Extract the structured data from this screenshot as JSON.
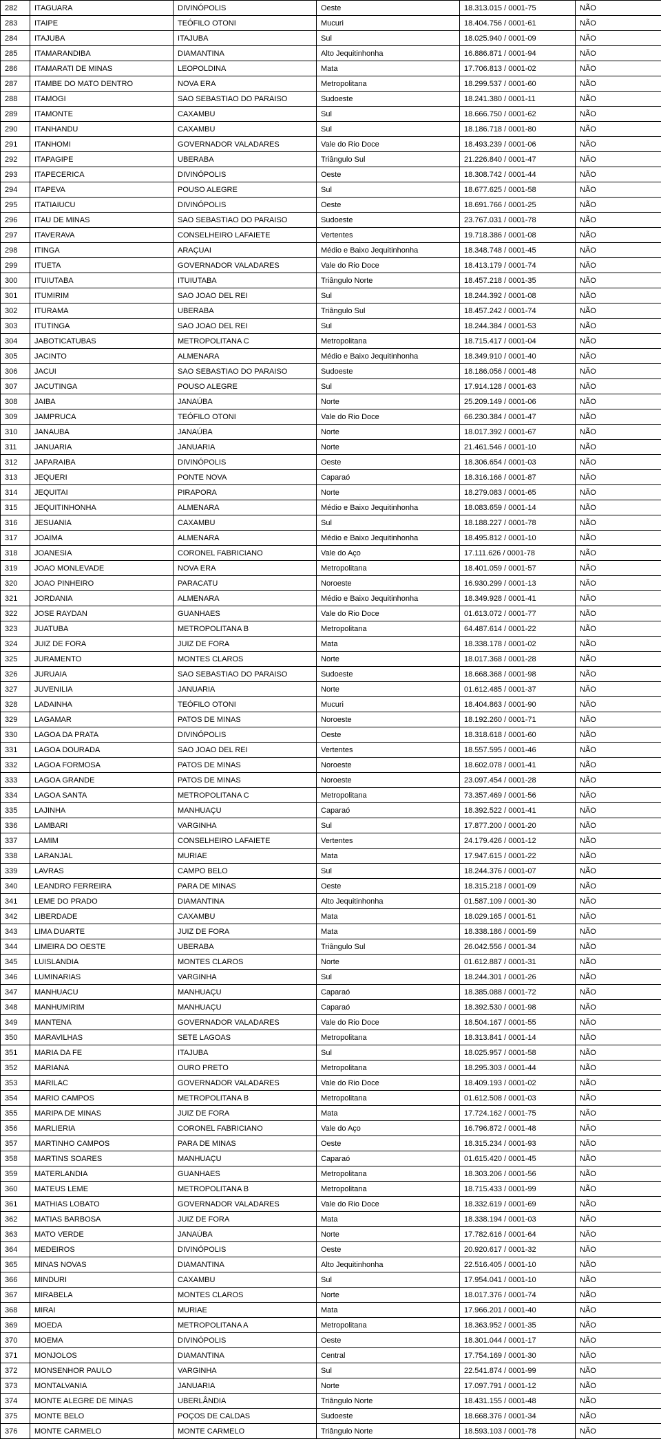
{
  "rows": [
    {
      "idx": "282",
      "mun": "ITAGUARA",
      "reg": "DIVINÓPOLIS",
      "sub": "Oeste",
      "cnpj": "18.313.015 / 0001-75",
      "flag": "NÃO"
    },
    {
      "idx": "283",
      "mun": "ITAIPE",
      "reg": "TEÓFILO OTONI",
      "sub": "Mucuri",
      "cnpj": "18.404.756 / 0001-61",
      "flag": "NÃO"
    },
    {
      "idx": "284",
      "mun": "ITAJUBA",
      "reg": "ITAJUBA",
      "sub": "Sul",
      "cnpj": "18.025.940 / 0001-09",
      "flag": "NÃO"
    },
    {
      "idx": "285",
      "mun": "ITAMARANDIBA",
      "reg": "DIAMANTINA",
      "sub": "Alto Jequitinhonha",
      "cnpj": "16.886.871 / 0001-94",
      "flag": "NÃO"
    },
    {
      "idx": "286",
      "mun": "ITAMARATI DE MINAS",
      "reg": "LEOPOLDINA",
      "sub": "Mata",
      "cnpj": "17.706.813 / 0001-02",
      "flag": "NÃO"
    },
    {
      "idx": "287",
      "mun": "ITAMBE DO MATO DENTRO",
      "reg": "NOVA ERA",
      "sub": "Metropolitana",
      "cnpj": "18.299.537 / 0001-60",
      "flag": "NÃO"
    },
    {
      "idx": "288",
      "mun": "ITAMOGI",
      "reg": "SAO SEBASTIAO DO PARAISO",
      "sub": "Sudoeste",
      "cnpj": "18.241.380 / 0001-11",
      "flag": "NÃO"
    },
    {
      "idx": "289",
      "mun": "ITAMONTE",
      "reg": "CAXAMBU",
      "sub": "Sul",
      "cnpj": "18.666.750 / 0001-62",
      "flag": "NÃO"
    },
    {
      "idx": "290",
      "mun": "ITANHANDU",
      "reg": "CAXAMBU",
      "sub": "Sul",
      "cnpj": "18.186.718 / 0001-80",
      "flag": "NÃO"
    },
    {
      "idx": "291",
      "mun": "ITANHOMI",
      "reg": "GOVERNADOR VALADARES",
      "sub": "Vale do Rio Doce",
      "cnpj": "18.493.239 / 0001-06",
      "flag": "NÃO"
    },
    {
      "idx": "292",
      "mun": "ITAPAGIPE",
      "reg": "UBERABA",
      "sub": "Triângulo Sul",
      "cnpj": "21.226.840 / 0001-47",
      "flag": "NÃO"
    },
    {
      "idx": "293",
      "mun": "ITAPECERICA",
      "reg": "DIVINÓPOLIS",
      "sub": "Oeste",
      "cnpj": "18.308.742 / 0001-44",
      "flag": "NÃO"
    },
    {
      "idx": "294",
      "mun": "ITAPEVA",
      "reg": "POUSO ALEGRE",
      "sub": "Sul",
      "cnpj": "18.677.625 / 0001-58",
      "flag": "NÃO"
    },
    {
      "idx": "295",
      "mun": "ITATIAIUCU",
      "reg": "DIVINÓPOLIS",
      "sub": "Oeste",
      "cnpj": "18.691.766 / 0001-25",
      "flag": "NÃO"
    },
    {
      "idx": "296",
      "mun": "ITAU DE MINAS",
      "reg": "SAO SEBASTIAO DO PARAISO",
      "sub": "Sudoeste",
      "cnpj": "23.767.031 / 0001-78",
      "flag": "NÃO"
    },
    {
      "idx": "297",
      "mun": "ITAVERAVA",
      "reg": "CONSELHEIRO LAFAIETE",
      "sub": "Vertentes",
      "cnpj": "19.718.386 / 0001-08",
      "flag": "NÃO"
    },
    {
      "idx": "298",
      "mun": "ITINGA",
      "reg": "ARAÇUAI",
      "sub": "Médio e Baixo Jequitinhonha",
      "cnpj": "18.348.748 / 0001-45",
      "flag": "NÃO"
    },
    {
      "idx": "299",
      "mun": "ITUETA",
      "reg": "GOVERNADOR VALADARES",
      "sub": "Vale do Rio Doce",
      "cnpj": "18.413.179 / 0001-74",
      "flag": "NÃO"
    },
    {
      "idx": "300",
      "mun": "ITUIUTABA",
      "reg": "ITUIUTABA",
      "sub": "Triângulo Norte",
      "cnpj": "18.457.218 / 0001-35",
      "flag": "NÃO"
    },
    {
      "idx": "301",
      "mun": "ITUMIRIM",
      "reg": "SAO JOAO DEL REI",
      "sub": "Sul",
      "cnpj": "18.244.392 / 0001-08",
      "flag": "NÃO"
    },
    {
      "idx": "302",
      "mun": "ITURAMA",
      "reg": "UBERABA",
      "sub": "Triângulo Sul",
      "cnpj": "18.457.242 / 0001-74",
      "flag": "NÃO"
    },
    {
      "idx": "303",
      "mun": "ITUTINGA",
      "reg": "SAO JOAO DEL REI",
      "sub": "Sul",
      "cnpj": "18.244.384 / 0001-53",
      "flag": "NÃO"
    },
    {
      "idx": "304",
      "mun": "JABOTICATUBAS",
      "reg": "METROPOLITANA C",
      "sub": "Metropolitana",
      "cnpj": "18.715.417 / 0001-04",
      "flag": "NÃO"
    },
    {
      "idx": "305",
      "mun": "JACINTO",
      "reg": "ALMENARA",
      "sub": "Médio e Baixo Jequitinhonha",
      "cnpj": "18.349.910 / 0001-40",
      "flag": "NÃO"
    },
    {
      "idx": "306",
      "mun": "JACUI",
      "reg": "SAO SEBASTIAO DO PARAISO",
      "sub": "Sudoeste",
      "cnpj": "18.186.056 / 0001-48",
      "flag": "NÃO"
    },
    {
      "idx": "307",
      "mun": "JACUTINGA",
      "reg": "POUSO ALEGRE",
      "sub": "Sul",
      "cnpj": "17.914.128 / 0001-63",
      "flag": "NÃO"
    },
    {
      "idx": "308",
      "mun": "JAIBA",
      "reg": "JANAÚBA",
      "sub": "Norte",
      "cnpj": "25.209.149 / 0001-06",
      "flag": "NÃO"
    },
    {
      "idx": "309",
      "mun": "JAMPRUCA",
      "reg": "TEÓFILO OTONI",
      "sub": "Vale do Rio Doce",
      "cnpj": "66.230.384 / 0001-47",
      "flag": "NÃO"
    },
    {
      "idx": "310",
      "mun": "JANAUBA",
      "reg": "JANAÚBA",
      "sub": "Norte",
      "cnpj": "18.017.392 / 0001-67",
      "flag": "NÃO"
    },
    {
      "idx": "311",
      "mun": "JANUARIA",
      "reg": "JANUARIA",
      "sub": "Norte",
      "cnpj": "21.461.546 / 0001-10",
      "flag": "NÃO"
    },
    {
      "idx": "312",
      "mun": "JAPARAIBA",
      "reg": "DIVINÓPOLIS",
      "sub": "Oeste",
      "cnpj": "18.306.654 / 0001-03",
      "flag": "NÃO"
    },
    {
      "idx": "313",
      "mun": "JEQUERI",
      "reg": "PONTE NOVA",
      "sub": "Caparaó",
      "cnpj": "18.316.166 / 0001-87",
      "flag": "NÃO"
    },
    {
      "idx": "314",
      "mun": "JEQUITAI",
      "reg": "PIRAPORA",
      "sub": "Norte",
      "cnpj": "18.279.083 / 0001-65",
      "flag": "NÃO"
    },
    {
      "idx": "315",
      "mun": "JEQUITINHONHA",
      "reg": "ALMENARA",
      "sub": "Médio e Baixo Jequitinhonha",
      "cnpj": "18.083.659 / 0001-14",
      "flag": "NÃO"
    },
    {
      "idx": "316",
      "mun": "JESUANIA",
      "reg": "CAXAMBU",
      "sub": "Sul",
      "cnpj": "18.188.227 / 0001-78",
      "flag": "NÃO"
    },
    {
      "idx": "317",
      "mun": "JOAIMA",
      "reg": "ALMENARA",
      "sub": "Médio e Baixo Jequitinhonha",
      "cnpj": "18.495.812 / 0001-10",
      "flag": "NÃO"
    },
    {
      "idx": "318",
      "mun": "JOANESIA",
      "reg": "CORONEL FABRICIANO",
      "sub": "Vale do Aço",
      "cnpj": "17.111.626 / 0001-78",
      "flag": "NÃO"
    },
    {
      "idx": "319",
      "mun": "JOAO MONLEVADE",
      "reg": "NOVA ERA",
      "sub": "Metropolitana",
      "cnpj": "18.401.059 / 0001-57",
      "flag": "NÃO"
    },
    {
      "idx": "320",
      "mun": "JOAO PINHEIRO",
      "reg": "PARACATU",
      "sub": "Noroeste",
      "cnpj": "16.930.299 / 0001-13",
      "flag": "NÃO"
    },
    {
      "idx": "321",
      "mun": "JORDANIA",
      "reg": "ALMENARA",
      "sub": "Médio e Baixo Jequitinhonha",
      "cnpj": "18.349.928 / 0001-41",
      "flag": "NÃO"
    },
    {
      "idx": "322",
      "mun": "JOSE RAYDAN",
      "reg": "GUANHAES",
      "sub": "Vale do Rio Doce",
      "cnpj": "01.613.072 / 0001-77",
      "flag": "NÃO"
    },
    {
      "idx": "323",
      "mun": "JUATUBA",
      "reg": "METROPOLITANA B",
      "sub": "Metropolitana",
      "cnpj": "64.487.614 / 0001-22",
      "flag": "NÃO"
    },
    {
      "idx": "324",
      "mun": "JUIZ DE FORA",
      "reg": "JUIZ DE FORA",
      "sub": "Mata",
      "cnpj": "18.338.178 / 0001-02",
      "flag": "NÃO"
    },
    {
      "idx": "325",
      "mun": "JURAMENTO",
      "reg": "MONTES CLAROS",
      "sub": "Norte",
      "cnpj": "18.017.368 / 0001-28",
      "flag": "NÃO"
    },
    {
      "idx": "326",
      "mun": "JURUAIA",
      "reg": "SAO SEBASTIAO DO PARAISO",
      "sub": "Sudoeste",
      "cnpj": "18.668.368 / 0001-98",
      "flag": "NÃO"
    },
    {
      "idx": "327",
      "mun": "JUVENILIA",
      "reg": "JANUARIA",
      "sub": "Norte",
      "cnpj": "01.612.485 / 0001-37",
      "flag": "NÃO"
    },
    {
      "idx": "328",
      "mun": "LADAINHA",
      "reg": "TEÓFILO OTONI",
      "sub": "Mucuri",
      "cnpj": "18.404.863 / 0001-90",
      "flag": "NÃO"
    },
    {
      "idx": "329",
      "mun": "LAGAMAR",
      "reg": "PATOS DE MINAS",
      "sub": "Noroeste",
      "cnpj": "18.192.260 / 0001-71",
      "flag": "NÃO"
    },
    {
      "idx": "330",
      "mun": "LAGOA DA PRATA",
      "reg": "DIVINÓPOLIS",
      "sub": "Oeste",
      "cnpj": "18.318.618 / 0001-60",
      "flag": "NÃO"
    },
    {
      "idx": "331",
      "mun": "LAGOA DOURADA",
      "reg": "SAO JOAO DEL REI",
      "sub": "Vertentes",
      "cnpj": "18.557.595 / 0001-46",
      "flag": "NÃO"
    },
    {
      "idx": "332",
      "mun": "LAGOA FORMOSA",
      "reg": "PATOS DE MINAS",
      "sub": "Noroeste",
      "cnpj": "18.602.078 / 0001-41",
      "flag": "NÃO"
    },
    {
      "idx": "333",
      "mun": "LAGOA GRANDE",
      "reg": "PATOS DE MINAS",
      "sub": "Noroeste",
      "cnpj": "23.097.454 / 0001-28",
      "flag": "NÃO"
    },
    {
      "idx": "334",
      "mun": "LAGOA SANTA",
      "reg": "METROPOLITANA C",
      "sub": "Metropolitana",
      "cnpj": "73.357.469 / 0001-56",
      "flag": "NÃO"
    },
    {
      "idx": "335",
      "mun": "LAJINHA",
      "reg": "MANHUAÇU",
      "sub": "Caparaó",
      "cnpj": "18.392.522 / 0001-41",
      "flag": "NÃO"
    },
    {
      "idx": "336",
      "mun": "LAMBARI",
      "reg": "VARGINHA",
      "sub": "Sul",
      "cnpj": "17.877.200 / 0001-20",
      "flag": "NÃO"
    },
    {
      "idx": "337",
      "mun": "LAMIM",
      "reg": "CONSELHEIRO LAFAIETE",
      "sub": "Vertentes",
      "cnpj": "24.179.426 / 0001-12",
      "flag": "NÃO"
    },
    {
      "idx": "338",
      "mun": "LARANJAL",
      "reg": "MURIAE",
      "sub": "Mata",
      "cnpj": "17.947.615 / 0001-22",
      "flag": "NÃO"
    },
    {
      "idx": "339",
      "mun": "LAVRAS",
      "reg": "CAMPO BELO",
      "sub": "Sul",
      "cnpj": "18.244.376 / 0001-07",
      "flag": "NÃO"
    },
    {
      "idx": "340",
      "mun": "LEANDRO FERREIRA",
      "reg": "PARA DE MINAS",
      "sub": "Oeste",
      "cnpj": "18.315.218 / 0001-09",
      "flag": "NÃO"
    },
    {
      "idx": "341",
      "mun": "LEME DO PRADO",
      "reg": "DIAMANTINA",
      "sub": "Alto Jequitinhonha",
      "cnpj": "01.587.109 / 0001-30",
      "flag": "NÃO"
    },
    {
      "idx": "342",
      "mun": "LIBERDADE",
      "reg": "CAXAMBU",
      "sub": "Mata",
      "cnpj": "18.029.165 / 0001-51",
      "flag": "NÃO"
    },
    {
      "idx": "343",
      "mun": "LIMA DUARTE",
      "reg": "JUIZ DE FORA",
      "sub": "Mata",
      "cnpj": "18.338.186 / 0001-59",
      "flag": "NÃO"
    },
    {
      "idx": "344",
      "mun": "LIMEIRA DO OESTE",
      "reg": "UBERABA",
      "sub": "Triângulo Sul",
      "cnpj": "26.042.556 / 0001-34",
      "flag": "NÃO"
    },
    {
      "idx": "345",
      "mun": "LUISLANDIA",
      "reg": "MONTES CLAROS",
      "sub": "Norte",
      "cnpj": "01.612.887 / 0001-31",
      "flag": "NÃO"
    },
    {
      "idx": "346",
      "mun": "LUMINARIAS",
      "reg": "VARGINHA",
      "sub": "Sul",
      "cnpj": "18.244.301 / 0001-26",
      "flag": "NÃO"
    },
    {
      "idx": "347",
      "mun": "MANHUACU",
      "reg": "MANHUAÇU",
      "sub": "Caparaó",
      "cnpj": "18.385.088 / 0001-72",
      "flag": "NÃO"
    },
    {
      "idx": "348",
      "mun": "MANHUMIRIM",
      "reg": "MANHUAÇU",
      "sub": "Caparaó",
      "cnpj": "18.392.530 / 0001-98",
      "flag": "NÃO"
    },
    {
      "idx": "349",
      "mun": "MANTENA",
      "reg": "GOVERNADOR VALADARES",
      "sub": "Vale do Rio Doce",
      "cnpj": "18.504.167 / 0001-55",
      "flag": "NÃO"
    },
    {
      "idx": "350",
      "mun": "MARAVILHAS",
      "reg": "SETE LAGOAS",
      "sub": "Metropolitana",
      "cnpj": "18.313.841 / 0001-14",
      "flag": "NÃO"
    },
    {
      "idx": "351",
      "mun": "MARIA DA FE",
      "reg": "ITAJUBA",
      "sub": "Sul",
      "cnpj": "18.025.957 / 0001-58",
      "flag": "NÃO"
    },
    {
      "idx": "352",
      "mun": "MARIANA",
      "reg": "OURO PRETO",
      "sub": "Metropolitana",
      "cnpj": "18.295.303 / 0001-44",
      "flag": "NÃO"
    },
    {
      "idx": "353",
      "mun": "MARILAC",
      "reg": "GOVERNADOR VALADARES",
      "sub": "Vale do Rio Doce",
      "cnpj": "18.409.193 / 0001-02",
      "flag": "NÃO"
    },
    {
      "idx": "354",
      "mun": "MARIO CAMPOS",
      "reg": "METROPOLITANA B",
      "sub": "Metropolitana",
      "cnpj": "01.612.508 / 0001-03",
      "flag": "NÃO"
    },
    {
      "idx": "355",
      "mun": "MARIPA DE MINAS",
      "reg": "JUIZ DE FORA",
      "sub": "Mata",
      "cnpj": "17.724.162 / 0001-75",
      "flag": "NÃO"
    },
    {
      "idx": "356",
      "mun": "MARLIERIA",
      "reg": "CORONEL FABRICIANO",
      "sub": "Vale do Aço",
      "cnpj": "16.796.872 / 0001-48",
      "flag": "NÃO"
    },
    {
      "idx": "357",
      "mun": "MARTINHO CAMPOS",
      "reg": "PARA DE MINAS",
      "sub": "Oeste",
      "cnpj": "18.315.234 / 0001-93",
      "flag": "NÃO"
    },
    {
      "idx": "358",
      "mun": "MARTINS SOARES",
      "reg": "MANHUAÇU",
      "sub": "Caparaó",
      "cnpj": "01.615.420 / 0001-45",
      "flag": "NÃO"
    },
    {
      "idx": "359",
      "mun": "MATERLANDIA",
      "reg": "GUANHAES",
      "sub": "Metropolitana",
      "cnpj": "18.303.206 / 0001-56",
      "flag": "NÃO"
    },
    {
      "idx": "360",
      "mun": "MATEUS LEME",
      "reg": "METROPOLITANA B",
      "sub": "Metropolitana",
      "cnpj": "18.715.433 / 0001-99",
      "flag": "NÃO"
    },
    {
      "idx": "361",
      "mun": "MATHIAS LOBATO",
      "reg": "GOVERNADOR VALADARES",
      "sub": "Vale do Rio Doce",
      "cnpj": "18.332.619 / 0001-69",
      "flag": "NÃO"
    },
    {
      "idx": "362",
      "mun": "MATIAS BARBOSA",
      "reg": "JUIZ DE FORA",
      "sub": "Mata",
      "cnpj": "18.338.194 / 0001-03",
      "flag": "NÃO"
    },
    {
      "idx": "363",
      "mun": "MATO VERDE",
      "reg": "JANAÚBA",
      "sub": "Norte",
      "cnpj": "17.782.616 / 0001-64",
      "flag": "NÃO"
    },
    {
      "idx": "364",
      "mun": "MEDEIROS",
      "reg": "DIVINÓPOLIS",
      "sub": "Oeste",
      "cnpj": "20.920.617 / 0001-32",
      "flag": "NÃO"
    },
    {
      "idx": "365",
      "mun": "MINAS NOVAS",
      "reg": "DIAMANTINA",
      "sub": "Alto Jequitinhonha",
      "cnpj": "22.516.405 / 0001-10",
      "flag": "NÃO"
    },
    {
      "idx": "366",
      "mun": "MINDURI",
      "reg": "CAXAMBU",
      "sub": "Sul",
      "cnpj": "17.954.041 / 0001-10",
      "flag": "NÃO"
    },
    {
      "idx": "367",
      "mun": "MIRABELA",
      "reg": "MONTES CLAROS",
      "sub": "Norte",
      "cnpj": "18.017.376 / 0001-74",
      "flag": "NÃO"
    },
    {
      "idx": "368",
      "mun": "MIRAI",
      "reg": "MURIAE",
      "sub": "Mata",
      "cnpj": "17.966.201 / 0001-40",
      "flag": "NÃO"
    },
    {
      "idx": "369",
      "mun": "MOEDA",
      "reg": "METROPOLITANA A",
      "sub": "Metropolitana",
      "cnpj": "18.363.952 / 0001-35",
      "flag": "NÃO"
    },
    {
      "idx": "370",
      "mun": "MOEMA",
      "reg": "DIVINÓPOLIS",
      "sub": "Oeste",
      "cnpj": "18.301.044 / 0001-17",
      "flag": "NÃO"
    },
    {
      "idx": "371",
      "mun": "MONJOLOS",
      "reg": "DIAMANTINA",
      "sub": "Central",
      "cnpj": "17.754.169 / 0001-30",
      "flag": "NÃO"
    },
    {
      "idx": "372",
      "mun": "MONSENHOR PAULO",
      "reg": "VARGINHA",
      "sub": "Sul",
      "cnpj": "22.541.874 / 0001-99",
      "flag": "NÃO"
    },
    {
      "idx": "373",
      "mun": "MONTALVANIA",
      "reg": "JANUARIA",
      "sub": "Norte",
      "cnpj": "17.097.791 / 0001-12",
      "flag": "NÃO"
    },
    {
      "idx": "374",
      "mun": "MONTE ALEGRE DE MINAS",
      "reg": "UBERLÂNDIA",
      "sub": "Triângulo Norte",
      "cnpj": "18.431.155 / 0001-48",
      "flag": "NÃO"
    },
    {
      "idx": "375",
      "mun": "MONTE BELO",
      "reg": "POÇOS DE CALDAS",
      "sub": "Sudoeste",
      "cnpj": "18.668.376 / 0001-34",
      "flag": "NÃO"
    },
    {
      "idx": "376",
      "mun": "MONTE CARMELO",
      "reg": "MONTE CARMELO",
      "sub": "Triângulo Norte",
      "cnpj": "18.593.103 / 0001-78",
      "flag": "NÃO"
    }
  ]
}
